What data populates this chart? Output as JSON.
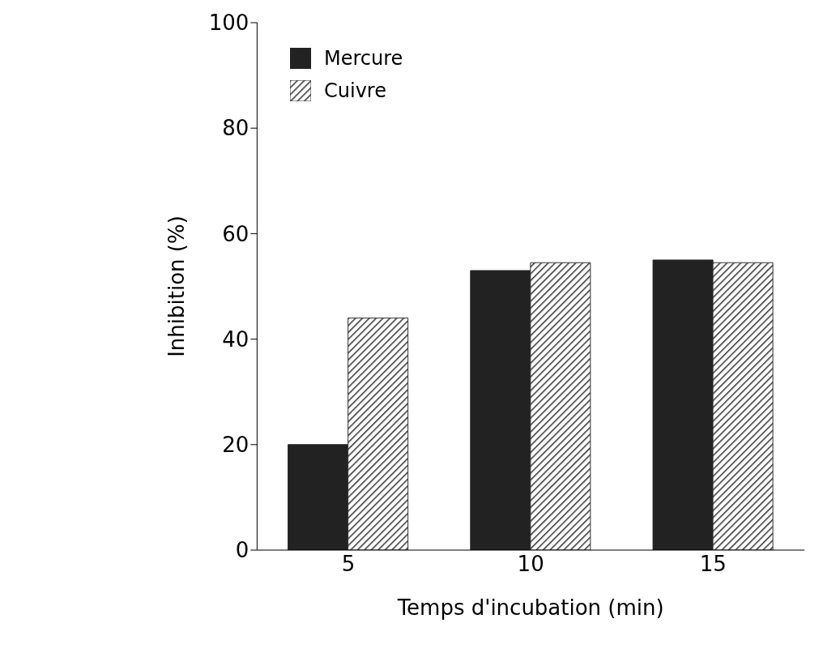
{
  "chart_data": {
    "type": "bar",
    "xlabel": "Temps  d'incubation  (min)",
    "ylabel": "Inhibition (%)",
    "categories": [
      "5",
      "10",
      "15"
    ],
    "series": [
      {
        "name": "Mercure",
        "color": "#222222",
        "values": [
          20,
          53,
          55
        ]
      },
      {
        "name": "Cuivre",
        "color": "#333333",
        "values": [
          44,
          54.5,
          54.5
        ]
      }
    ],
    "ylim": [
      0,
      100
    ],
    "yticks": [
      0,
      20,
      40,
      60,
      80,
      100
    ],
    "grid": false,
    "legend": "top left"
  }
}
